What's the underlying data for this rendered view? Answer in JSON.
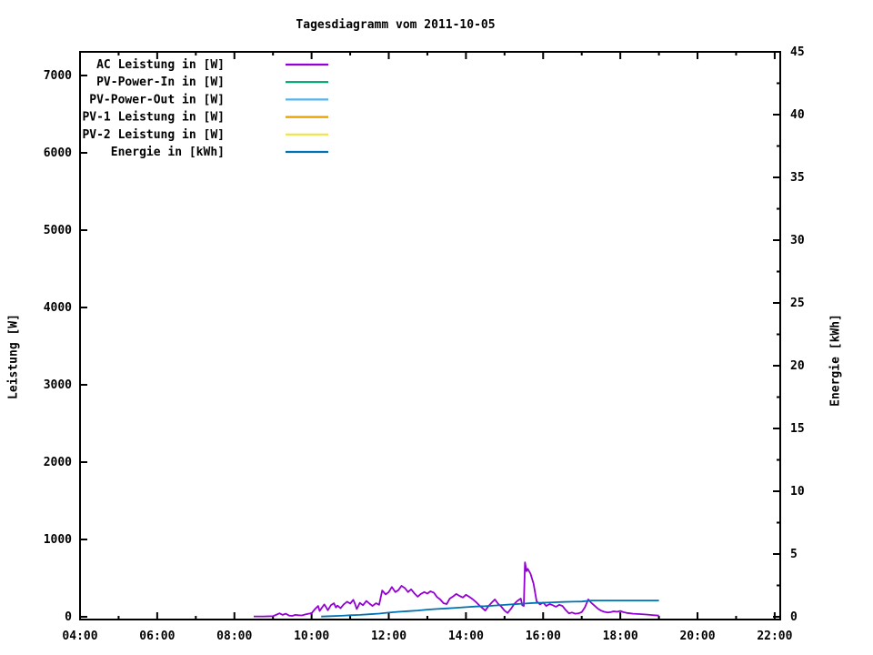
{
  "title": "Tagesdiagramm vom 2011-10-05",
  "chart_data": {
    "type": "line",
    "title": "Tagesdiagramm vom 2011-10-05",
    "x_axis": {
      "unit": "time",
      "range_hours": [
        4,
        22.17
      ],
      "major_tick_hours": [
        4,
        6,
        8,
        10,
        12,
        14,
        16,
        18,
        20,
        22
      ],
      "major_tick_labels": [
        "04:00",
        "06:00",
        "08:00",
        "10:00",
        "12:00",
        "14:00",
        "16:00",
        "18:00",
        "20:00",
        "22:00"
      ],
      "minor_tick_hours": [
        5,
        7,
        9,
        11,
        13,
        15,
        17,
        19,
        21
      ]
    },
    "y_left_axis": {
      "label": "Leistung [W]",
      "range": [
        0,
        7320
      ],
      "tick_values": [
        0,
        1000,
        2000,
        3000,
        4000,
        5000,
        6000,
        7000
      ],
      "tick_labels": [
        "0",
        "1000",
        "2000",
        "3000",
        "4000",
        "5000",
        "6000",
        "7000"
      ]
    },
    "y_right_axis": {
      "label": "Energie [kWh]",
      "range": [
        0,
        45
      ],
      "tick_values": [
        0,
        5,
        10,
        15,
        20,
        25,
        30,
        35,
        40,
        45
      ],
      "tick_labels": [
        "0",
        "5",
        "10",
        "15",
        "20",
        "25",
        "30",
        "35",
        "40",
        "45"
      ],
      "minor_tick_values": [
        2.5,
        7.5,
        12.5,
        17.5,
        22.5,
        27.5,
        32.5,
        37.5,
        42.5
      ]
    },
    "legend_position": "top-left-inside",
    "grid": false,
    "series": [
      {
        "name": "AC Leistung in [W]",
        "color": "#9400D3",
        "axis": "left",
        "points": [
          [
            8.5,
            5
          ],
          [
            8.75,
            5
          ],
          [
            9.0,
            8
          ],
          [
            9.1,
            30
          ],
          [
            9.17,
            45
          ],
          [
            9.25,
            25
          ],
          [
            9.33,
            40
          ],
          [
            9.42,
            15
          ],
          [
            9.5,
            12
          ],
          [
            9.58,
            25
          ],
          [
            9.67,
            20
          ],
          [
            9.75,
            18
          ],
          [
            9.83,
            30
          ],
          [
            9.92,
            40
          ],
          [
            10.0,
            45
          ],
          [
            10.08,
            95
          ],
          [
            10.17,
            140
          ],
          [
            10.21,
            75
          ],
          [
            10.25,
            105
          ],
          [
            10.33,
            160
          ],
          [
            10.38,
            120
          ],
          [
            10.42,
            85
          ],
          [
            10.5,
            150
          ],
          [
            10.58,
            175
          ],
          [
            10.63,
            120
          ],
          [
            10.67,
            145
          ],
          [
            10.75,
            110
          ],
          [
            10.83,
            160
          ],
          [
            10.92,
            195
          ],
          [
            11.0,
            170
          ],
          [
            11.08,
            220
          ],
          [
            11.13,
            160
          ],
          [
            11.17,
            100
          ],
          [
            11.25,
            180
          ],
          [
            11.33,
            150
          ],
          [
            11.42,
            205
          ],
          [
            11.5,
            170
          ],
          [
            11.58,
            140
          ],
          [
            11.67,
            175
          ],
          [
            11.75,
            155
          ],
          [
            11.83,
            340
          ],
          [
            11.92,
            290
          ],
          [
            12.0,
            320
          ],
          [
            12.08,
            385
          ],
          [
            12.17,
            320
          ],
          [
            12.25,
            345
          ],
          [
            12.33,
            400
          ],
          [
            12.42,
            370
          ],
          [
            12.5,
            320
          ],
          [
            12.58,
            355
          ],
          [
            12.67,
            300
          ],
          [
            12.75,
            260
          ],
          [
            12.83,
            295
          ],
          [
            12.92,
            320
          ],
          [
            13.0,
            300
          ],
          [
            13.08,
            330
          ],
          [
            13.17,
            310
          ],
          [
            13.25,
            255
          ],
          [
            13.33,
            225
          ],
          [
            13.42,
            175
          ],
          [
            13.5,
            165
          ],
          [
            13.58,
            235
          ],
          [
            13.67,
            265
          ],
          [
            13.75,
            295
          ],
          [
            13.83,
            270
          ],
          [
            13.92,
            250
          ],
          [
            14.0,
            285
          ],
          [
            14.08,
            260
          ],
          [
            14.17,
            230
          ],
          [
            14.25,
            195
          ],
          [
            14.33,
            155
          ],
          [
            14.42,
            115
          ],
          [
            14.5,
            80
          ],
          [
            14.58,
            135
          ],
          [
            14.67,
            185
          ],
          [
            14.75,
            225
          ],
          [
            14.83,
            170
          ],
          [
            14.92,
            130
          ],
          [
            15.0,
            80
          ],
          [
            15.08,
            50
          ],
          [
            15.17,
            105
          ],
          [
            15.25,
            165
          ],
          [
            15.33,
            205
          ],
          [
            15.42,
            235
          ],
          [
            15.46,
            150
          ],
          [
            15.5,
            140
          ],
          [
            15.53,
            705
          ],
          [
            15.57,
            590
          ],
          [
            15.6,
            620
          ],
          [
            15.67,
            560
          ],
          [
            15.75,
            430
          ],
          [
            15.83,
            200
          ],
          [
            15.92,
            160
          ],
          [
            16.0,
            185
          ],
          [
            16.08,
            140
          ],
          [
            16.17,
            165
          ],
          [
            16.25,
            150
          ],
          [
            16.33,
            130
          ],
          [
            16.42,
            155
          ],
          [
            16.5,
            140
          ],
          [
            16.58,
            90
          ],
          [
            16.67,
            45
          ],
          [
            16.75,
            55
          ],
          [
            16.83,
            40
          ],
          [
            16.92,
            45
          ],
          [
            17.0,
            60
          ],
          [
            17.08,
            120
          ],
          [
            17.17,
            225
          ],
          [
            17.25,
            180
          ],
          [
            17.33,
            145
          ],
          [
            17.42,
            105
          ],
          [
            17.5,
            80
          ],
          [
            17.58,
            65
          ],
          [
            17.67,
            55
          ],
          [
            17.75,
            60
          ],
          [
            17.83,
            70
          ],
          [
            17.92,
            65
          ],
          [
            18.0,
            75
          ],
          [
            18.08,
            60
          ],
          [
            18.17,
            50
          ],
          [
            18.25,
            45
          ],
          [
            18.33,
            40
          ],
          [
            18.5,
            35
          ],
          [
            18.67,
            30
          ],
          [
            18.83,
            22
          ],
          [
            19.0,
            15
          ]
        ]
      },
      {
        "name": "PV-Power-In in [W]",
        "color": "#009E73",
        "axis": "left",
        "points": []
      },
      {
        "name": "PV-Power-Out in [W]",
        "color": "#56B4E9",
        "axis": "left",
        "points": []
      },
      {
        "name": "PV-1 Leistung in [W]",
        "color": "#E69F00",
        "axis": "left",
        "points": []
      },
      {
        "name": "PV-2 Leistung in [W]",
        "color": "#F0E442",
        "axis": "left",
        "points": []
      },
      {
        "name": "Energie in [kWh]",
        "color": "#0072B2",
        "axis": "right",
        "points": [
          [
            10.25,
            0.02
          ],
          [
            10.5,
            0.05
          ],
          [
            10.75,
            0.08
          ],
          [
            11.0,
            0.12
          ],
          [
            11.25,
            0.15
          ],
          [
            11.5,
            0.2
          ],
          [
            11.75,
            0.25
          ],
          [
            12.0,
            0.33
          ],
          [
            12.25,
            0.4
          ],
          [
            12.5,
            0.45
          ],
          [
            12.75,
            0.5
          ],
          [
            13.0,
            0.57
          ],
          [
            13.25,
            0.62
          ],
          [
            13.5,
            0.67
          ],
          [
            13.75,
            0.72
          ],
          [
            14.0,
            0.77
          ],
          [
            14.25,
            0.82
          ],
          [
            14.5,
            0.85
          ],
          [
            14.75,
            0.9
          ],
          [
            15.0,
            0.95
          ],
          [
            15.25,
            1.0
          ],
          [
            15.5,
            1.05
          ],
          [
            15.75,
            1.1
          ],
          [
            16.0,
            1.12
          ],
          [
            16.25,
            1.15
          ],
          [
            16.5,
            1.18
          ],
          [
            16.75,
            1.2
          ],
          [
            17.0,
            1.22
          ],
          [
            17.25,
            1.3
          ],
          [
            19.0,
            1.3
          ]
        ]
      }
    ]
  }
}
